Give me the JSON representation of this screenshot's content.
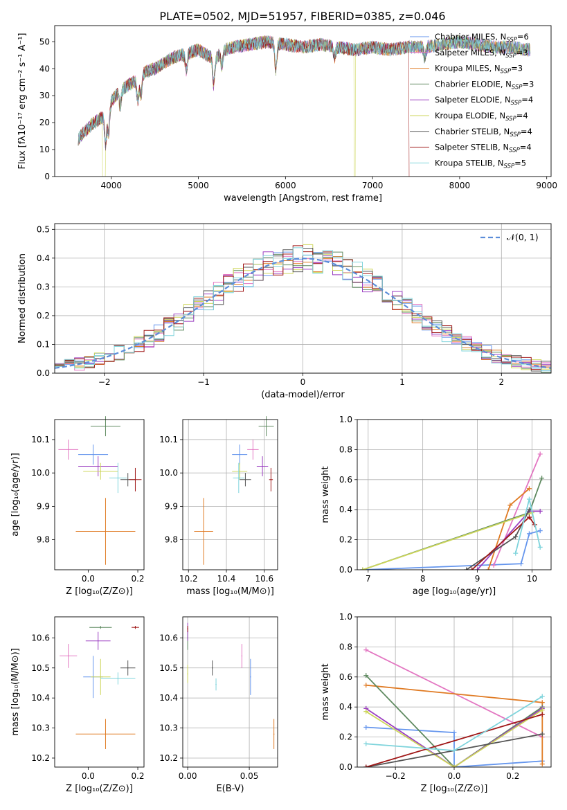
{
  "title": "PLATE=0502, MJD=51957, FIBERID=0385, z=0.046",
  "series_colors": [
    "#6495ED",
    "#E377C2",
    "#E07B24",
    "#5F8A60",
    "#9B3FC1",
    "#CDD65A",
    "#555555",
    "#A01818",
    "#7FD4DC"
  ],
  "chart_data": [
    {
      "id": "spectrum",
      "type": "line",
      "xlabel": "wavelength [Angstrom, rest frame]",
      "ylabel": "Flux [fλ10⁻¹⁷ erg cm⁻² s⁻¹ A⁻¹]",
      "xlim": [
        3350,
        9050
      ],
      "ylim": [
        0,
        56
      ],
      "xticks": [
        4000,
        5000,
        6000,
        7000,
        8000,
        9000
      ],
      "yticks": [
        0,
        10,
        20,
        30,
        40,
        50
      ],
      "grid": false,
      "legend_position": "top-right",
      "legend": [
        "Chabrier MILES, N_SSP=6",
        "Salpeter MILES, N_SSP=3",
        "Kroupa MILES, N_SSP=3",
        "Chabrier ELODIE, N_SSP=3",
        "Salpeter ELODIE, N_SSP=4",
        "Kroupa ELODIE, N_SSP=4",
        "Chabrier STELIB, N_SSP=4",
        "Salpeter STELIB, N_SSP=4",
        "Kroupa STELIB, N_SSP=5"
      ],
      "continuum": [
        [
          3620,
          14
        ],
        [
          3700,
          17
        ],
        [
          3800,
          20
        ],
        [
          3900,
          22
        ],
        [
          4000,
          28
        ],
        [
          4100,
          32
        ],
        [
          4200,
          34
        ],
        [
          4300,
          36
        ],
        [
          4400,
          39
        ],
        [
          4500,
          40
        ],
        [
          4600,
          42
        ],
        [
          4700,
          44
        ],
        [
          4800,
          45
        ],
        [
          4900,
          46
        ],
        [
          5000,
          47
        ],
        [
          5100,
          45
        ],
        [
          5200,
          44
        ],
        [
          5300,
          47
        ],
        [
          5400,
          48
        ],
        [
          5600,
          49
        ],
        [
          5800,
          50
        ],
        [
          6000,
          49
        ],
        [
          6200,
          48
        ],
        [
          6400,
          49
        ],
        [
          6600,
          48
        ],
        [
          6800,
          47
        ],
        [
          7000,
          48
        ],
        [
          7200,
          47
        ],
        [
          7400,
          48
        ],
        [
          7600,
          48
        ],
        [
          7800,
          49
        ],
        [
          8000,
          50
        ],
        [
          8200,
          49
        ],
        [
          8400,
          48
        ],
        [
          8600,
          48
        ],
        [
          8800,
          47
        ]
      ],
      "absorption_lines": [
        [
          3934,
          12
        ],
        [
          3969,
          10
        ],
        [
          4102,
          6
        ],
        [
          4304,
          8
        ],
        [
          4340,
          7
        ],
        [
          4861,
          6
        ],
        [
          5175,
          10
        ],
        [
          5270,
          5
        ],
        [
          5890,
          10
        ],
        [
          6563,
          4
        ],
        [
          7600,
          4
        ]
      ],
      "dropouts": [
        {
          "series": 5,
          "x": [
            3900,
            3930
          ]
        },
        {
          "series": 5,
          "x": [
            6790,
            6800
          ]
        },
        {
          "series": 7,
          "x": [
            7420,
            7430
          ]
        }
      ]
    },
    {
      "id": "residual_histogram",
      "type": "histogram",
      "xlabel": "(data-model)/error",
      "ylabel": "Normed distribution",
      "xlim": [
        -2.5,
        2.5
      ],
      "ylim": [
        0,
        0.52
      ],
      "xticks": [
        -2,
        -1,
        0,
        1,
        2
      ],
      "yticks": [
        0.0,
        0.1,
        0.2,
        0.3,
        0.4,
        0.5
      ],
      "grid": true,
      "bin_width": 0.1,
      "reference_curve": {
        "label": "𝒩(0, 1)",
        "mean": 0,
        "sigma": 1,
        "style": "dashed"
      },
      "legend_position": "top-right"
    },
    {
      "id": "age_vs_metallicity",
      "type": "scatter",
      "xlabel": "Z [log₁₀(Z/Z⊙)]",
      "ylabel": "age [log₁₀(age/yr)]",
      "xlim": [
        -0.135,
        0.225
      ],
      "ylim": [
        9.71,
        10.16
      ],
      "xticks": [
        0.0,
        0.2
      ],
      "yticks": [
        9.8,
        9.9,
        10.0,
        10.1
      ],
      "grid": false,
      "points": [
        {
          "series": 0,
          "x": 0.02,
          "y": 10.055,
          "xerr": 0.06,
          "yerr": 0.03
        },
        {
          "series": 1,
          "x": -0.08,
          "y": 10.07,
          "xerr": 0.04,
          "yerr": 0.03
        },
        {
          "series": 2,
          "x": 0.07,
          "y": 9.825,
          "xerr": 0.12,
          "yerr": 0.1
        },
        {
          "series": 3,
          "x": 0.07,
          "y": 10.14,
          "xerr": 0.06,
          "yerr": 0.03
        },
        {
          "series": 4,
          "x": 0.04,
          "y": 10.02,
          "xerr": 0.08,
          "yerr": 0.03
        },
        {
          "series": 5,
          "x": 0.05,
          "y": 10.005,
          "xerr": 0.07,
          "yerr": 0.025
        },
        {
          "series": 6,
          "x": 0.16,
          "y": 9.98,
          "xerr": 0.03,
          "yerr": 0.02
        },
        {
          "series": 7,
          "x": 0.19,
          "y": 9.98,
          "xerr": 0.025,
          "yerr": 0.035
        },
        {
          "series": 8,
          "x": 0.12,
          "y": 9.985,
          "xerr": 0.035,
          "yerr": 0.045
        }
      ]
    },
    {
      "id": "age_vs_mass",
      "type": "scatter",
      "xlabel": "mass [log₁₀(M/M⊙)]",
      "ylabel": "",
      "xlim": [
        10.17,
        10.67
      ],
      "ylim": [
        9.71,
        10.16
      ],
      "xticks": [
        10.2,
        10.4,
        10.6
      ],
      "yticks": [
        9.8,
        9.9,
        10.0,
        10.1
      ],
      "grid": true,
      "points": [
        {
          "series": 0,
          "x": 10.47,
          "y": 10.055,
          "xerr": 0.04,
          "yerr": 0.03
        },
        {
          "series": 1,
          "x": 10.54,
          "y": 10.07,
          "xerr": 0.03,
          "yerr": 0.03
        },
        {
          "series": 2,
          "x": 10.28,
          "y": 9.825,
          "xerr": 0.05,
          "yerr": 0.1
        },
        {
          "series": 3,
          "x": 10.61,
          "y": 10.14,
          "xerr": 0.04,
          "yerr": 0.03
        },
        {
          "series": 4,
          "x": 10.59,
          "y": 10.02,
          "xerr": 0.03,
          "yerr": 0.03
        },
        {
          "series": 5,
          "x": 10.47,
          "y": 10.005,
          "xerr": 0.04,
          "yerr": 0.025
        },
        {
          "series": 6,
          "x": 10.5,
          "y": 9.98,
          "xerr": 0.03,
          "yerr": 0.02
        },
        {
          "series": 7,
          "x": 10.635,
          "y": 9.98,
          "xerr": 0.01,
          "yerr": 0.035
        },
        {
          "series": 8,
          "x": 10.465,
          "y": 9.985,
          "xerr": 0.03,
          "yerr": 0.045
        }
      ]
    },
    {
      "id": "mass_weight_vs_age",
      "type": "line",
      "xlabel": "age [log₁₀(age/yr)]",
      "ylabel": "mass weight",
      "xlim": [
        6.8,
        10.35
      ],
      "ylim": [
        0.0,
        1.0
      ],
      "xticks": [
        7,
        8,
        9,
        10
      ],
      "yticks": [
        0.0,
        0.2,
        0.4,
        0.6,
        0.8,
        1.0
      ],
      "grid": true,
      "series": [
        {
          "series": 0,
          "points": [
            [
              6.9,
              0.0
            ],
            [
              9.8,
              0.04
            ],
            [
              9.95,
              0.24
            ],
            [
              10.15,
              0.26
            ]
          ]
        },
        {
          "series": 1,
          "points": [
            [
              9.3,
              0.03
            ],
            [
              10.15,
              0.77
            ]
          ]
        },
        {
          "series": 2,
          "points": [
            [
              9.2,
              0.0
            ],
            [
              9.6,
              0.43
            ],
            [
              9.95,
              0.54
            ]
          ]
        },
        {
          "series": 3,
          "points": [
            [
              6.9,
              0.0
            ],
            [
              9.95,
              0.38
            ],
            [
              10.18,
              0.61
            ]
          ]
        },
        {
          "series": 4,
          "points": [
            [
              9.0,
              0.0
            ],
            [
              9.95,
              0.39
            ],
            [
              10.15,
              0.39
            ]
          ]
        },
        {
          "series": 5,
          "points": [
            [
              6.9,
              0.0
            ],
            [
              10.0,
              0.38
            ]
          ]
        },
        {
          "series": 6,
          "points": [
            [
              8.8,
              0.0
            ],
            [
              9.7,
              0.22
            ],
            [
              9.95,
              0.4
            ]
          ]
        },
        {
          "series": 7,
          "points": [
            [
              8.9,
              0.0
            ],
            [
              9.95,
              0.35
            ],
            [
              10.05,
              0.3
            ]
          ]
        },
        {
          "series": 8,
          "points": [
            [
              9.7,
              0.11
            ],
            [
              9.95,
              0.47
            ],
            [
              10.15,
              0.15
            ]
          ]
        }
      ]
    },
    {
      "id": "mass_vs_metallicity",
      "type": "scatter",
      "xlabel": "Z [log₁₀(Z/Z⊙)]",
      "ylabel": "mass [log₁₀(M/M⊙)]",
      "xlim": [
        -0.135,
        0.225
      ],
      "ylim": [
        10.17,
        10.67
      ],
      "xticks": [
        0.0,
        0.2
      ],
      "yticks": [
        10.2,
        10.3,
        10.4,
        10.5,
        10.6
      ],
      "grid": false,
      "points": [
        {
          "series": 0,
          "x": 0.02,
          "y": 10.47,
          "xerr": 0.04,
          "yerr": 0.07
        },
        {
          "series": 1,
          "x": -0.08,
          "y": 10.54,
          "xerr": 0.035,
          "yerr": 0.04
        },
        {
          "series": 2,
          "x": 0.07,
          "y": 10.28,
          "xerr": 0.12,
          "yerr": 0.05
        },
        {
          "series": 3,
          "x": 0.05,
          "y": 10.635,
          "xerr": 0.045,
          "yerr": 0.005
        },
        {
          "series": 4,
          "x": 0.04,
          "y": 10.59,
          "xerr": 0.05,
          "yerr": 0.03
        },
        {
          "series": 5,
          "x": 0.05,
          "y": 10.47,
          "xerr": 0.04,
          "yerr": 0.06
        },
        {
          "series": 6,
          "x": 0.16,
          "y": 10.5,
          "xerr": 0.03,
          "yerr": 0.025
        },
        {
          "series": 7,
          "x": 0.19,
          "y": 10.635,
          "xerr": 0.015,
          "yerr": 0.005
        },
        {
          "series": 8,
          "x": 0.12,
          "y": 10.465,
          "xerr": 0.07,
          "yerr": 0.02
        }
      ]
    },
    {
      "id": "mass_vs_ebv",
      "type": "scatter",
      "xlabel": "E(B-V)",
      "ylabel": "",
      "xlim": [
        -0.004,
        0.073
      ],
      "ylim": [
        10.17,
        10.67
      ],
      "xticks": [
        0.0,
        0.05
      ],
      "yticks": [
        10.2,
        10.3,
        10.4,
        10.5,
        10.6
      ],
      "grid": true,
      "points": [
        {
          "series": 0,
          "x": 0.051,
          "y": 10.47,
          "xerr": 0,
          "yerr": 0.06
        },
        {
          "series": 1,
          "x": 0.044,
          "y": 10.54,
          "xerr": 0,
          "yerr": 0.04
        },
        {
          "series": 2,
          "x": 0.07,
          "y": 10.28,
          "xerr": 0,
          "yerr": 0.05
        },
        {
          "series": 3,
          "x": 0.0,
          "y": 10.6,
          "xerr": 0,
          "yerr": 0.04
        },
        {
          "series": 4,
          "x": 0.0,
          "y": 10.62,
          "xerr": 0,
          "yerr": 0.03
        },
        {
          "series": 5,
          "x": 0.0,
          "y": 10.48,
          "xerr": 0,
          "yerr": 0.03
        },
        {
          "series": 6,
          "x": 0.02,
          "y": 10.5,
          "xerr": 0,
          "yerr": 0.025
        },
        {
          "series": 7,
          "x": 0.0,
          "y": 10.63,
          "xerr": 0,
          "yerr": 0.01
        },
        {
          "series": 8,
          "x": 0.023,
          "y": 10.445,
          "xerr": 0,
          "yerr": 0.02
        }
      ]
    },
    {
      "id": "mass_weight_vs_metallicity",
      "type": "line",
      "xlabel": "Z [log₁₀(Z/Z⊙)]",
      "ylabel": "mass weight",
      "xlim": [
        -0.33,
        0.33
      ],
      "ylim": [
        0.0,
        1.0
      ],
      "xticks": [
        -0.2,
        0.0,
        0.2
      ],
      "yticks": [
        0.0,
        0.2,
        0.4,
        0.6,
        0.8,
        1.0
      ],
      "grid": true,
      "series": [
        {
          "series": 0,
          "points": [
            [
              -0.3,
              0.265
            ],
            [
              0.0,
              0.23
            ],
            [
              0.0,
              0.0
            ],
            [
              0.3,
              0.04
            ]
          ]
        },
        {
          "series": 1,
          "points": [
            [
              -0.3,
              0.78
            ],
            [
              0.3,
              0.2
            ]
          ]
        },
        {
          "series": 2,
          "points": [
            [
              -0.3,
              0.545
            ],
            [
              0.3,
              0.43
            ],
            [
              0.3,
              0.02
            ]
          ]
        },
        {
          "series": 3,
          "points": [
            [
              -0.3,
              0.61
            ],
            [
              0.0,
              0.0
            ],
            [
              0.3,
              0.4
            ]
          ]
        },
        {
          "series": 4,
          "points": [
            [
              -0.3,
              0.39
            ],
            [
              0.0,
              0.0
            ],
            [
              0.3,
              0.39
            ]
          ]
        },
        {
          "series": 5,
          "points": [
            [
              -0.3,
              0.37
            ],
            [
              0.0,
              0.0
            ],
            [
              0.3,
              0.38
            ]
          ]
        },
        {
          "series": 6,
          "points": [
            [
              -0.3,
              0.0
            ],
            [
              0.3,
              0.22
            ]
          ]
        },
        {
          "series": 7,
          "points": [
            [
              -0.3,
              0.0
            ],
            [
              0.3,
              0.35
            ]
          ]
        },
        {
          "series": 8,
          "points": [
            [
              -0.3,
              0.155
            ],
            [
              0.0,
              0.11
            ],
            [
              0.3,
              0.47
            ]
          ]
        }
      ]
    }
  ]
}
